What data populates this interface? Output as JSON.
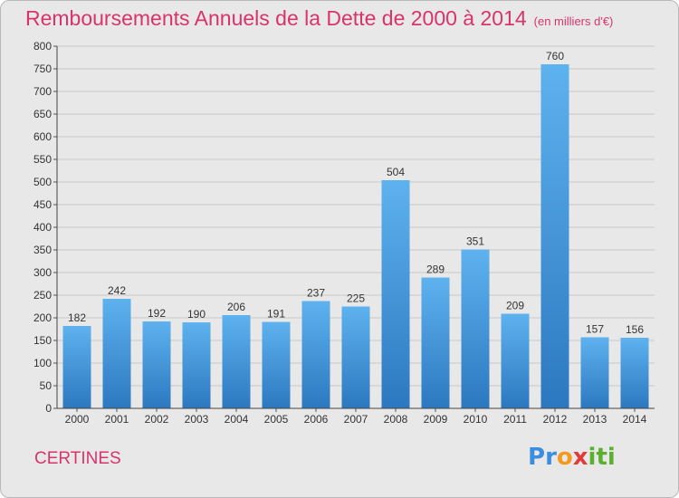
{
  "title": "Remboursements Annuels de la Dette de 2000 à 2014",
  "subtitle": "(en milliers d'€)",
  "place": "CERTINES",
  "logo": {
    "text": "Proxiti",
    "letters": [
      "P",
      "r",
      "o",
      "x",
      "i",
      "t",
      "i"
    ],
    "colors": [
      "#3a8ee0",
      "#3a8ee0",
      "#f39a1f",
      "#e23b3b",
      "#5bb030",
      "#5bb030",
      "#5bb030"
    ]
  },
  "colors": {
    "title": "#d9346a",
    "bar_light": "#5aaeea",
    "bar_dark": "#2e7dc4",
    "background": "#e8e8e8"
  },
  "chart_data": {
    "type": "bar",
    "categories": [
      "2000",
      "2001",
      "2002",
      "2003",
      "2004",
      "2005",
      "2006",
      "2007",
      "2008",
      "2009",
      "2010",
      "2011",
      "2012",
      "2013",
      "2014"
    ],
    "values": [
      182,
      242,
      192,
      190,
      206,
      191,
      237,
      225,
      504,
      289,
      351,
      209,
      760,
      157,
      156
    ],
    "ylim": [
      0,
      800
    ],
    "yticks": [
      0,
      50,
      100,
      150,
      200,
      250,
      300,
      350,
      400,
      450,
      500,
      550,
      600,
      650,
      700,
      750,
      800
    ],
    "grid": true,
    "data_labels": true
  }
}
